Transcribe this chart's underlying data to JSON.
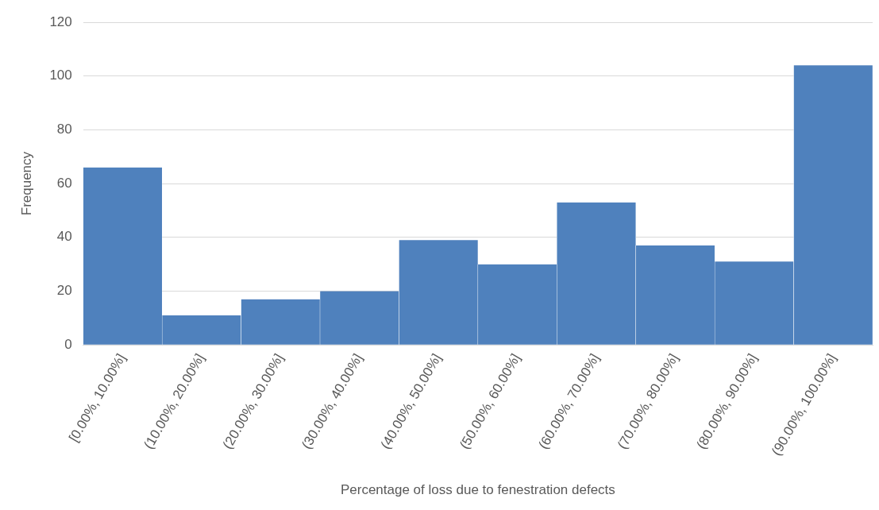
{
  "chart_data": {
    "type": "bar",
    "xlabel": "Percentage of loss due to fenestration defects",
    "ylabel": "Frequency",
    "categories": [
      "[0.00%, 10.00%]",
      "(10.00%, 20.00%]",
      "(20.00%, 30.00%]",
      "(30.00%, 40.00%]",
      "(40.00%, 50.00%]",
      "(50.00%, 60.00%]",
      "(60.00%, 70.00%]",
      "(70.00%, 80.00%]",
      "(80.00%, 90.00%]",
      "(90.00%, 100.00%]"
    ],
    "values": [
      66,
      11,
      17,
      20,
      39,
      30,
      53,
      37,
      31,
      104
    ],
    "color": "#4f81bd",
    "ylim": [
      0,
      120
    ],
    "yticks": [
      0,
      20,
      40,
      60,
      80,
      100,
      120
    ],
    "grid": "y"
  }
}
